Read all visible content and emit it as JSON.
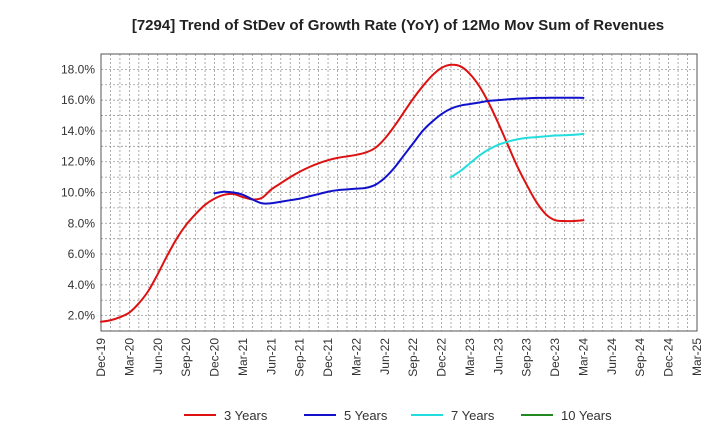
{
  "chart_data": {
    "type": "line",
    "title": "[7294]  Trend of StDev of Growth Rate (YoY) of 12Mo Mov Sum of Revenues",
    "xlabel": "",
    "ylabel": "",
    "ylim": [
      1.0,
      19.0
    ],
    "y_ticks": [
      2.0,
      4.0,
      6.0,
      8.0,
      10.0,
      12.0,
      14.0,
      16.0,
      18.0
    ],
    "y_tick_labels": [
      "2.0%",
      "4.0%",
      "6.0%",
      "8.0%",
      "10.0%",
      "12.0%",
      "14.0%",
      "16.0%",
      "18.0%"
    ],
    "x_tick_labels": [
      "Dec-19",
      "Mar-20",
      "Jun-20",
      "Sep-20",
      "Dec-20",
      "Mar-21",
      "Jun-21",
      "Sep-21",
      "Dec-21",
      "Mar-22",
      "Jun-22",
      "Sep-22",
      "Dec-22",
      "Mar-23",
      "Jun-23",
      "Sep-23",
      "Dec-23",
      "Mar-24",
      "Jun-24",
      "Sep-24",
      "Dec-24",
      "Mar-25"
    ],
    "grid": true,
    "legend_position": "bottom",
    "series": [
      {
        "name": "3 Years",
        "color": "#dd1111",
        "points": [
          [
            0,
            1.6
          ],
          [
            1,
            1.7
          ],
          [
            2,
            1.9
          ],
          [
            3,
            2.2
          ],
          [
            4,
            2.8
          ],
          [
            5,
            3.6
          ],
          [
            6,
            4.7
          ],
          [
            7,
            5.9
          ],
          [
            8,
            7.0
          ],
          [
            9,
            7.9
          ],
          [
            10,
            8.6
          ],
          [
            11,
            9.2
          ],
          [
            12,
            9.6
          ],
          [
            13,
            9.85
          ],
          [
            14,
            9.9
          ],
          [
            15,
            9.7
          ],
          [
            16,
            9.55
          ],
          [
            17,
            9.65
          ],
          [
            18,
            10.2
          ],
          [
            19,
            10.6
          ],
          [
            20,
            11.0
          ],
          [
            21,
            11.35
          ],
          [
            22,
            11.65
          ],
          [
            23,
            11.9
          ],
          [
            24,
            12.1
          ],
          [
            25,
            12.25
          ],
          [
            26,
            12.35
          ],
          [
            27,
            12.45
          ],
          [
            28,
            12.6
          ],
          [
            29,
            12.9
          ],
          [
            30,
            13.5
          ],
          [
            31,
            14.3
          ],
          [
            32,
            15.2
          ],
          [
            33,
            16.1
          ],
          [
            34,
            16.9
          ],
          [
            35,
            17.6
          ],
          [
            36,
            18.1
          ],
          [
            37,
            18.3
          ],
          [
            38,
            18.2
          ],
          [
            39,
            17.7
          ],
          [
            40,
            16.9
          ],
          [
            41,
            15.8
          ],
          [
            42,
            14.5
          ],
          [
            43,
            13.1
          ],
          [
            44,
            11.7
          ],
          [
            45,
            10.5
          ],
          [
            46,
            9.4
          ],
          [
            47,
            8.6
          ],
          [
            48,
            8.2
          ],
          [
            49,
            8.15
          ],
          [
            50,
            8.15
          ],
          [
            51,
            8.2
          ]
        ]
      },
      {
        "name": "5 Years",
        "color": "#1111cc",
        "points": [
          [
            12,
            9.95
          ],
          [
            13,
            10.05
          ],
          [
            14,
            10.0
          ],
          [
            15,
            9.85
          ],
          [
            16,
            9.55
          ],
          [
            17,
            9.3
          ],
          [
            18,
            9.3
          ],
          [
            19,
            9.4
          ],
          [
            20,
            9.5
          ],
          [
            21,
            9.6
          ],
          [
            22,
            9.75
          ],
          [
            23,
            9.9
          ],
          [
            24,
            10.05
          ],
          [
            25,
            10.15
          ],
          [
            26,
            10.2
          ],
          [
            27,
            10.25
          ],
          [
            28,
            10.3
          ],
          [
            29,
            10.5
          ],
          [
            30,
            10.95
          ],
          [
            31,
            11.6
          ],
          [
            32,
            12.4
          ],
          [
            33,
            13.2
          ],
          [
            34,
            14.0
          ],
          [
            35,
            14.6
          ],
          [
            36,
            15.1
          ],
          [
            37,
            15.45
          ],
          [
            38,
            15.65
          ],
          [
            39,
            15.75
          ],
          [
            40,
            15.85
          ],
          [
            41,
            15.95
          ],
          [
            42,
            16.0
          ],
          [
            43,
            16.05
          ],
          [
            44,
            16.1
          ],
          [
            45,
            16.12
          ],
          [
            46,
            16.15
          ],
          [
            47,
            16.15
          ],
          [
            48,
            16.16
          ],
          [
            49,
            16.16
          ],
          [
            50,
            16.16
          ],
          [
            51,
            16.15
          ]
        ]
      },
      {
        "name": "7 Years",
        "color": "#22dddd",
        "points": [
          [
            37,
            11.0
          ],
          [
            38,
            11.4
          ],
          [
            39,
            11.9
          ],
          [
            40,
            12.4
          ],
          [
            41,
            12.8
          ],
          [
            42,
            13.1
          ],
          [
            43,
            13.3
          ],
          [
            44,
            13.45
          ],
          [
            45,
            13.55
          ],
          [
            46,
            13.6
          ],
          [
            47,
            13.65
          ],
          [
            48,
            13.7
          ],
          [
            49,
            13.72
          ],
          [
            50,
            13.75
          ],
          [
            51,
            13.8
          ]
        ]
      },
      {
        "name": "10 Years",
        "color": "#228822",
        "points": []
      }
    ]
  }
}
